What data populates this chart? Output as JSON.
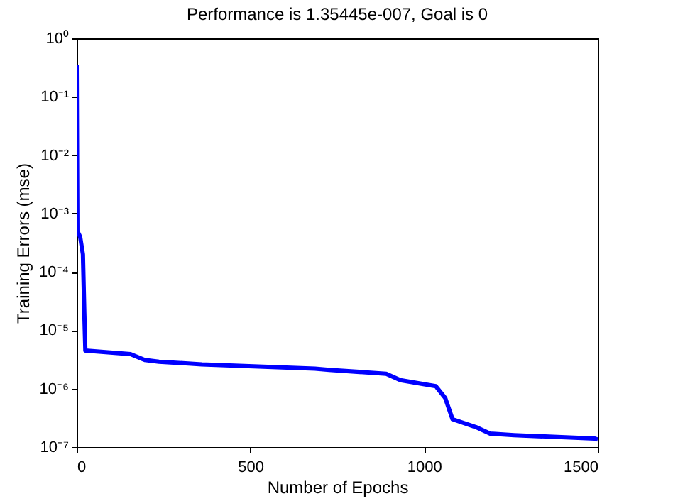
{
  "chart_data": {
    "type": "line",
    "title": "Performance is 1.35445e-007, Goal is 0",
    "xlabel": "Number of Epochs",
    "ylabel": "Training Errors (mse)",
    "x": [
      0,
      2,
      10,
      18,
      22,
      25,
      155,
      196,
      237,
      360,
      686,
      727,
      891,
      932,
      1034,
      1061,
      1082,
      1149,
      1190,
      1259,
      1491,
      1500
    ],
    "series": [
      {
        "color": "#0000ff",
        "values": [
          0.35,
          0.0005,
          0.0004,
          0.0002,
          2e-05,
          4.5e-06,
          3.9e-06,
          3.1e-06,
          2.9e-06,
          2.6e-06,
          2.2e-06,
          2.1e-06,
          1.8e-06,
          1.4e-06,
          1.1e-06,
          6.9e-07,
          3e-07,
          2.2e-07,
          1.7e-07,
          1.6e-07,
          1.4e-07,
          1.35e-07
        ]
      }
    ],
    "log": true,
    "xlim": [
      0,
      1500
    ],
    "xticks": [
      0,
      500,
      1000,
      1500
    ],
    "ylim": [
      1e-07,
      1
    ],
    "yticks": [
      {
        "value": 1e-07,
        "label": "10⁻⁷"
      },
      {
        "value": 1e-06,
        "label": "10⁻⁶"
      },
      {
        "value": 1e-05,
        "label": "10⁻⁵"
      },
      {
        "value": 0.0001,
        "label": "10⁻⁴"
      },
      {
        "value": 0.001,
        "label": "10⁻³"
      },
      {
        "value": 0.01,
        "label": "10⁻²"
      },
      {
        "value": 0.1,
        "label": "10⁻¹"
      },
      {
        "value": 1,
        "label": "10⁰"
      }
    ],
    "grid": false,
    "legend": false,
    "marker": "none",
    "line_style": "solid"
  }
}
